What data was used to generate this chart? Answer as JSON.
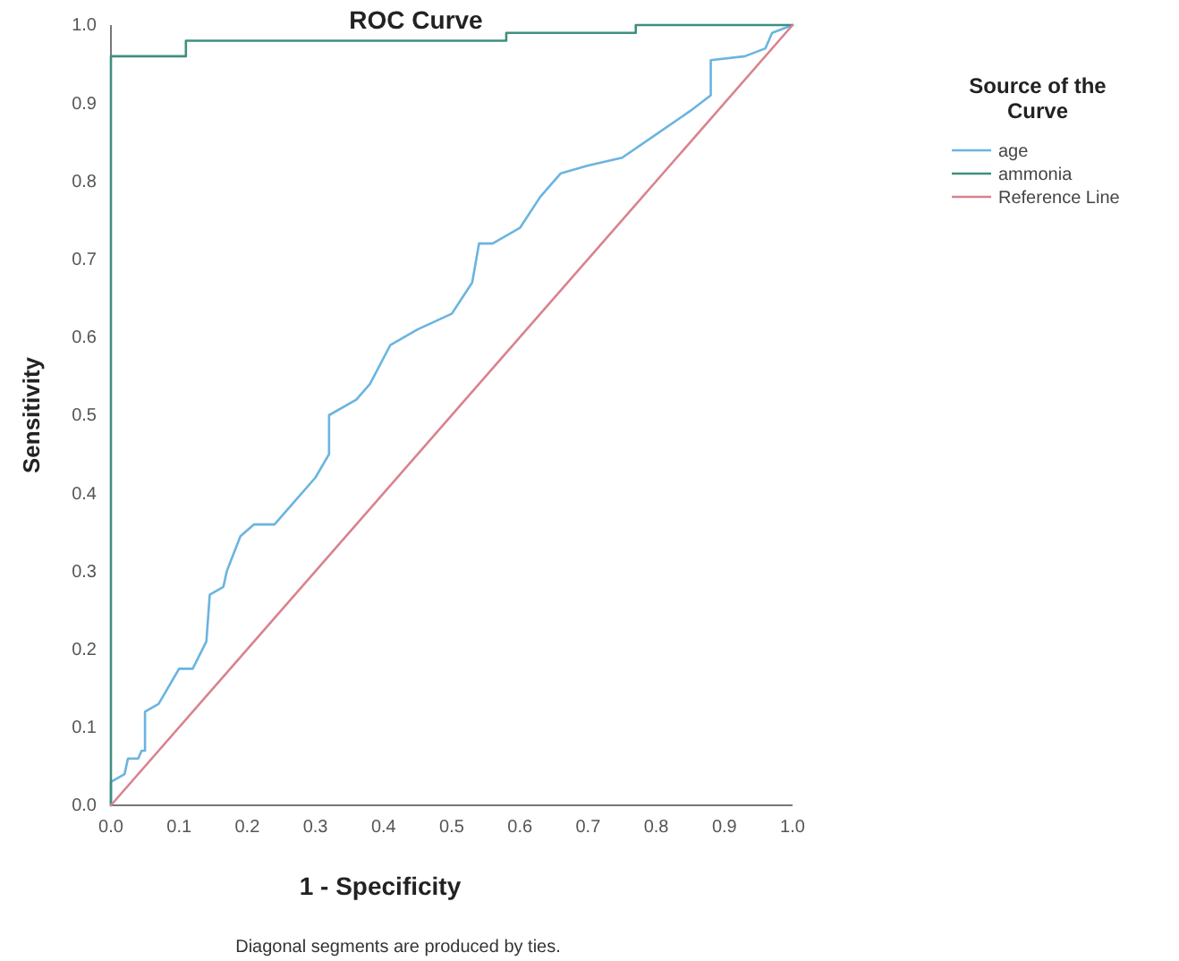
{
  "chart_data": {
    "type": "line",
    "title": "ROC Curve",
    "xlabel": "1 - Specificity",
    "ylabel": "Sensitivity",
    "legend_title": "Source of the Curve",
    "legend": "top right",
    "grid": false,
    "marker": "none",
    "line_style": "solid",
    "xlim": [
      0,
      1
    ],
    "ylim": [
      0,
      1
    ],
    "xticks": [
      {
        "value": 0,
        "label": "0.0"
      },
      {
        "value": 0.1,
        "label": "0.1"
      },
      {
        "value": 0.2,
        "label": "0.2"
      },
      {
        "value": 0.3,
        "label": "0.3"
      },
      {
        "value": 0.4,
        "label": "0.4"
      },
      {
        "value": 0.5,
        "label": "0.5"
      },
      {
        "value": 0.6,
        "label": "0.6"
      },
      {
        "value": 0.7,
        "label": "0.7"
      },
      {
        "value": 0.8,
        "label": "0.8"
      },
      {
        "value": 0.9,
        "label": "0.9"
      },
      {
        "value": 1,
        "label": "1.0"
      }
    ],
    "yticks": [
      {
        "value": 0,
        "label": "0.0"
      },
      {
        "value": 0.1,
        "label": "0.1"
      },
      {
        "value": 0.2,
        "label": "0.2"
      },
      {
        "value": 0.3,
        "label": "0.3"
      },
      {
        "value": 0.4,
        "label": "0.4"
      },
      {
        "value": 0.5,
        "label": "0.5"
      },
      {
        "value": 0.6,
        "label": "0.6"
      },
      {
        "value": 0.7,
        "label": "0.7"
      },
      {
        "value": 0.8,
        "label": "0.8"
      },
      {
        "value": 0.9,
        "label": "0.9"
      },
      {
        "value": 1,
        "label": "1.0"
      }
    ],
    "series": [
      {
        "name": "age",
        "color": "#6ab4e0",
        "x": [
          0,
          0,
          0.02,
          0.025,
          0.04,
          0.045,
          0.05,
          0.05,
          0.07,
          0.09,
          0.1,
          0.12,
          0.14,
          0.145,
          0.165,
          0.17,
          0.19,
          0.21,
          0.24,
          0.27,
          0.3,
          0.32,
          0.32,
          0.36,
          0.38,
          0.41,
          0.45,
          0.5,
          0.53,
          0.54,
          0.56,
          0.6,
          0.63,
          0.66,
          0.7,
          0.75,
          0.8,
          0.85,
          0.88,
          0.88,
          0.93,
          0.96,
          0.97,
          1
        ],
        "values": [
          0,
          0.03,
          0.04,
          0.06,
          0.06,
          0.07,
          0.07,
          0.12,
          0.13,
          0.16,
          0.175,
          0.175,
          0.21,
          0.27,
          0.28,
          0.3,
          0.345,
          0.36,
          0.36,
          0.39,
          0.42,
          0.45,
          0.5,
          0.52,
          0.54,
          0.59,
          0.61,
          0.63,
          0.67,
          0.72,
          0.72,
          0.74,
          0.78,
          0.81,
          0.82,
          0.83,
          0.86,
          0.89,
          0.91,
          0.955,
          0.96,
          0.97,
          0.99,
          1
        ]
      },
      {
        "name": "ammonia",
        "color": "#3f8f7f",
        "x": [
          0,
          0,
          0.11,
          0.11,
          0.58,
          0.58,
          0.77,
          0.77,
          1
        ],
        "values": [
          0,
          0.96,
          0.96,
          0.98,
          0.98,
          0.99,
          0.99,
          1,
          1
        ]
      },
      {
        "name": "Reference Line",
        "color": "#d9828f",
        "x": [
          0,
          1
        ],
        "values": [
          0,
          1
        ]
      }
    ],
    "annotations": [
      "Diagonal segments are produced by ties."
    ]
  }
}
